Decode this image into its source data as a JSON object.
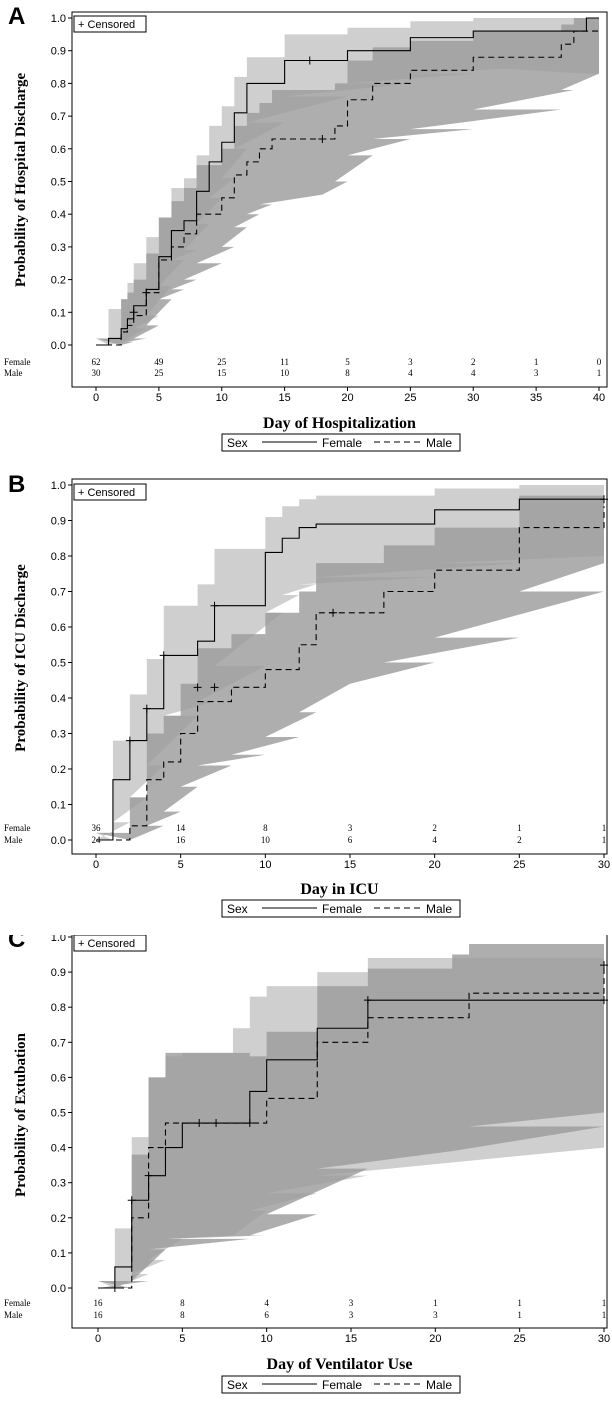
{
  "chart_data": [
    {
      "type": "line",
      "panel_label": "A",
      "censored_label": "+ Censored",
      "ylabel": "Probability of Hospital Discharge",
      "xlabel": "Day of Hospitalization",
      "xlim": [
        0,
        40
      ],
      "ylim": [
        0,
        1
      ],
      "xticks": [
        0,
        5,
        10,
        15,
        20,
        25,
        30,
        35,
        40
      ],
      "yticks": [
        0.0,
        0.1,
        0.2,
        0.3,
        0.4,
        0.5,
        0.6,
        0.7,
        0.8,
        0.9,
        1.0
      ],
      "ytick_labels": [
        "0.0",
        "0.1",
        "0.2",
        "0.3",
        "0.4",
        "0.5",
        "0.6",
        "0.7",
        "0.8",
        "0.9",
        "1.0"
      ],
      "series": [
        {
          "name": "Female",
          "style": "solid",
          "x": [
            0,
            1,
            2,
            2.5,
            3,
            4,
            5,
            6,
            7,
            8,
            9,
            10,
            11,
            12,
            15,
            20,
            25,
            30,
            35,
            39,
            40
          ],
          "y": [
            0,
            0.02,
            0.05,
            0.08,
            0.12,
            0.17,
            0.27,
            0.35,
            0.38,
            0.47,
            0.56,
            0.62,
            0.71,
            0.8,
            0.87,
            0.9,
            0.94,
            0.96,
            0.96,
            1.0,
            1.0
          ],
          "lower": [
            0,
            0,
            0.01,
            0.02,
            0.05,
            0.09,
            0.18,
            0.26,
            0.29,
            0.37,
            0.45,
            0.51,
            0.6,
            0.68,
            0.76,
            0.8,
            0.83,
            0.85,
            0.83,
            0.83,
            0.83
          ],
          "upper": [
            0.02,
            0.11,
            0.14,
            0.19,
            0.25,
            0.33,
            0.39,
            0.48,
            0.51,
            0.58,
            0.67,
            0.73,
            0.82,
            0.88,
            0.95,
            0.97,
            0.99,
            1.0,
            1.0,
            1.0,
            1.0
          ],
          "censor": [
            [
              3,
              0.1
            ],
            [
              17,
              0.87
            ]
          ]
        },
        {
          "name": "Male",
          "style": "dashed",
          "x": [
            0,
            2,
            2.5,
            3,
            4,
            5,
            6,
            7,
            8,
            10,
            11,
            12,
            13,
            14,
            18,
            19,
            20,
            22,
            25,
            30,
            37,
            38,
            40
          ],
          "y": [
            0,
            0.04,
            0.06,
            0.09,
            0.16,
            0.26,
            0.3,
            0.34,
            0.4,
            0.45,
            0.52,
            0.56,
            0.6,
            0.63,
            0.63,
            0.67,
            0.75,
            0.8,
            0.84,
            0.88,
            0.92,
            0.96,
            0.96
          ],
          "lower": [
            0,
            0,
            0.01,
            0.02,
            0.06,
            0.14,
            0.17,
            0.2,
            0.25,
            0.3,
            0.36,
            0.4,
            0.43,
            0.46,
            0.46,
            0.5,
            0.58,
            0.63,
            0.66,
            0.72,
            0.78,
            0.83,
            0.83
          ],
          "upper": [
            0.02,
            0.14,
            0.16,
            0.2,
            0.28,
            0.39,
            0.44,
            0.48,
            0.55,
            0.6,
            0.67,
            0.71,
            0.74,
            0.78,
            0.78,
            0.8,
            0.87,
            0.91,
            0.93,
            0.96,
            0.98,
            1.0,
            1.0
          ],
          "censor": [
            [
              4,
              0.16
            ],
            [
              18,
              0.63
            ]
          ]
        }
      ],
      "risk_table": {
        "labels": [
          "Female",
          "Male"
        ],
        "x": [
          0,
          5,
          10,
          15,
          20,
          25,
          30,
          35,
          40
        ],
        "rows": [
          [
            "62",
            "49",
            "25",
            "11",
            "5",
            "3",
            "2",
            "1",
            "0"
          ],
          [
            "30",
            "25",
            "15",
            "10",
            "8",
            "4",
            "4",
            "3",
            "1"
          ]
        ]
      },
      "legend": {
        "title": "Sex",
        "entries": [
          "Female",
          "Male"
        ]
      }
    },
    {
      "type": "line",
      "panel_label": "B",
      "censored_label": "+ Censored",
      "ylabel": "Probability of ICU Discharge",
      "xlabel": "Day in ICU",
      "xlim": [
        0,
        30
      ],
      "ylim": [
        0,
        1
      ],
      "xticks": [
        0,
        5,
        10,
        15,
        20,
        25,
        30
      ],
      "yticks": [
        0.0,
        0.1,
        0.2,
        0.3,
        0.4,
        0.5,
        0.6,
        0.7,
        0.8,
        0.9,
        1.0
      ],
      "ytick_labels": [
        "0.0",
        "0.1",
        "0.2",
        "0.3",
        "0.4",
        "0.5",
        "0.6",
        "0.7",
        "0.8",
        "0.9",
        "1.0"
      ],
      "series": [
        {
          "name": "Female",
          "style": "solid",
          "x": [
            0,
            1,
            2,
            3,
            4,
            6,
            7,
            10,
            11,
            12,
            13,
            20,
            25,
            30
          ],
          "y": [
            0,
            0.17,
            0.28,
            0.37,
            0.52,
            0.56,
            0.66,
            0.81,
            0.85,
            0.88,
            0.89,
            0.93,
            0.96,
            0.96
          ],
          "lower": [
            0,
            0.05,
            0.12,
            0.21,
            0.35,
            0.39,
            0.49,
            0.64,
            0.69,
            0.72,
            0.74,
            0.78,
            0.8,
            0.8
          ],
          "upper": [
            0.02,
            0.28,
            0.41,
            0.51,
            0.66,
            0.72,
            0.82,
            0.91,
            0.94,
            0.96,
            0.97,
            0.99,
            1.0,
            1.0
          ],
          "censor": [
            [
              2,
              0.28
            ],
            [
              3,
              0.37
            ],
            [
              4,
              0.52
            ],
            [
              7,
              0.66
            ],
            [
              30,
              0.96
            ]
          ]
        },
        {
          "name": "Male",
          "style": "dashed",
          "x": [
            0,
            2,
            3,
            4,
            5,
            6,
            8,
            10,
            12,
            13,
            15,
            17,
            20,
            25,
            30
          ],
          "y": [
            0,
            0.04,
            0.17,
            0.22,
            0.3,
            0.39,
            0.43,
            0.48,
            0.55,
            0.64,
            0.64,
            0.7,
            0.76,
            0.88,
            0.94
          ],
          "lower": [
            0,
            0,
            0.04,
            0.08,
            0.15,
            0.21,
            0.24,
            0.29,
            0.36,
            0.44,
            0.44,
            0.5,
            0.57,
            0.7,
            0.78
          ],
          "upper": [
            0.02,
            0.12,
            0.3,
            0.35,
            0.44,
            0.54,
            0.58,
            0.64,
            0.7,
            0.78,
            0.78,
            0.83,
            0.88,
            0.97,
            1.0
          ],
          "censor": [
            [
              6,
              0.43
            ],
            [
              7,
              0.43
            ],
            [
              14,
              0.64
            ]
          ]
        }
      ],
      "risk_table": {
        "labels": [
          "Female",
          "Male"
        ],
        "x": [
          0,
          5,
          10,
          15,
          20,
          25,
          30
        ],
        "rows": [
          [
            "36",
            "14",
            "8",
            "3",
            "2",
            "1",
            "1"
          ],
          [
            "24",
            "16",
            "10",
            "6",
            "4",
            "2",
            "1"
          ]
        ]
      },
      "legend": {
        "title": "Sex",
        "entries": [
          "Female",
          "Male"
        ]
      }
    },
    {
      "type": "line",
      "panel_label": "C",
      "censored_label": "+ Censored",
      "ylabel": "Probability of Extubation",
      "xlabel": "Day of Ventilator Use",
      "xlim": [
        0,
        30
      ],
      "ylim": [
        0,
        1
      ],
      "xticks": [
        0,
        5,
        10,
        15,
        20,
        25,
        30
      ],
      "yticks": [
        0.0,
        0.1,
        0.2,
        0.3,
        0.4,
        0.5,
        0.6,
        0.7,
        0.8,
        0.9,
        1.0
      ],
      "ytick_labels": [
        "0.0",
        "0.1",
        "0.2",
        "0.3",
        "0.4",
        "0.5",
        "0.6",
        "0.7",
        "0.8",
        "0.9",
        "1.0"
      ],
      "series": [
        {
          "name": "Female",
          "style": "solid",
          "x": [
            0,
            1,
            2,
            3,
            4,
            5,
            8,
            9,
            10,
            13,
            16,
            30
          ],
          "y": [
            0,
            0.06,
            0.25,
            0.32,
            0.4,
            0.47,
            0.47,
            0.56,
            0.65,
            0.74,
            0.82,
            0.82
          ],
          "lower": [
            0,
            0,
            0.04,
            0.08,
            0.14,
            0.15,
            0.15,
            0.22,
            0.27,
            0.32,
            0.4,
            0.4
          ],
          "upper": [
            0.02,
            0.17,
            0.43,
            0.6,
            0.66,
            0.67,
            0.74,
            0.83,
            0.86,
            0.9,
            0.94,
            0.95
          ],
          "censor": [
            [
              2,
              0.25
            ],
            [
              3,
              0.32
            ],
            [
              6,
              0.47
            ],
            [
              7,
              0.47
            ],
            [
              16,
              0.82
            ],
            [
              30,
              0.82
            ]
          ]
        },
        {
          "name": "Male",
          "style": "dashed",
          "x": [
            0,
            2,
            3,
            4,
            9,
            10,
            13,
            16,
            21,
            22,
            30
          ],
          "y": [
            0,
            0.2,
            0.4,
            0.47,
            0.47,
            0.54,
            0.7,
            0.77,
            0.77,
            0.84,
            0.92
          ],
          "lower": [
            0,
            0.02,
            0.11,
            0.14,
            0.15,
            0.21,
            0.34,
            0.39,
            0.39,
            0.46,
            0.5
          ],
          "upper": [
            0.02,
            0.38,
            0.6,
            0.67,
            0.66,
            0.73,
            0.86,
            0.91,
            0.95,
            0.98,
            1.0
          ],
          "censor": [
            [
              1,
              0.0
            ],
            [
              9,
              0.47
            ],
            [
              30,
              0.92
            ]
          ]
        }
      ],
      "risk_table": {
        "labels": [
          "Female",
          "Male"
        ],
        "x": [
          0,
          5,
          10,
          15,
          20,
          25,
          30
        ],
        "rows": [
          [
            "16",
            "8",
            "4",
            "3",
            "1",
            "1",
            "1"
          ],
          [
            "16",
            "8",
            "6",
            "3",
            "3",
            "1",
            "1"
          ]
        ]
      },
      "legend": {
        "title": "Sex",
        "entries": [
          "Female",
          "Male"
        ]
      }
    }
  ],
  "colors": {
    "female_band": "#cfcfcf",
    "male_band": "#9a9a9a",
    "overlap_band": "#8a8a8a",
    "line": "#000000"
  }
}
